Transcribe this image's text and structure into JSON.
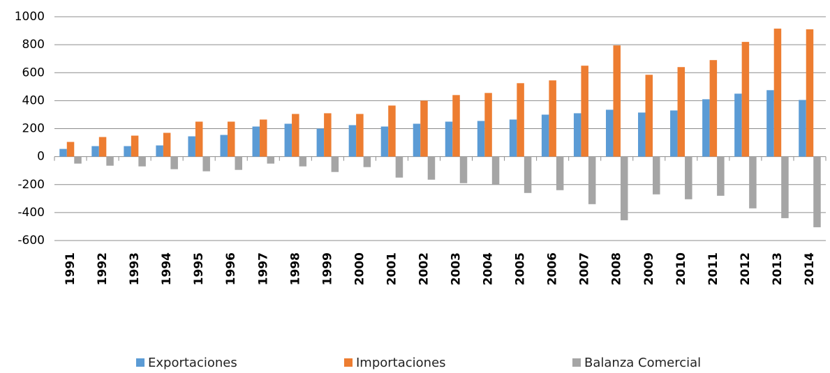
{
  "chart_data": {
    "type": "bar",
    "categories": [
      "1991",
      "1992",
      "1993",
      "1994",
      "1995",
      "1996",
      "1997",
      "1998",
      "1999",
      "2000",
      "2001",
      "2002",
      "2003",
      "2004",
      "2005",
      "2006",
      "2007",
      "2008",
      "2009",
      "2010",
      "2011",
      "2012",
      "2013",
      "2014"
    ],
    "series": [
      {
        "name": "Exportaciones",
        "color": "#5b9bd5",
        "values": [
          55,
          75,
          75,
          80,
          145,
          155,
          215,
          235,
          200,
          225,
          215,
          235,
          250,
          255,
          265,
          300,
          310,
          335,
          315,
          330,
          410,
          450,
          475,
          405
        ]
      },
      {
        "name": "Importaciones",
        "color": "#ed7d31",
        "values": [
          105,
          140,
          150,
          170,
          250,
          250,
          265,
          305,
          310,
          305,
          365,
          400,
          440,
          455,
          525,
          545,
          650,
          795,
          585,
          640,
          690,
          820,
          915,
          910
        ]
      },
      {
        "name": "Balanza Comercial",
        "color": "#a5a5a5",
        "values": [
          -50,
          -65,
          -70,
          -90,
          -105,
          -95,
          -50,
          -70,
          -110,
          -75,
          -150,
          -165,
          -190,
          -200,
          -260,
          -240,
          -340,
          -455,
          -270,
          -305,
          -280,
          -370,
          -440,
          -505
        ]
      }
    ],
    "ylim": [
      -600,
      1000
    ],
    "yticks": [
      -600,
      -400,
      -200,
      0,
      200,
      400,
      600,
      800,
      1000
    ],
    "grid": true
  }
}
